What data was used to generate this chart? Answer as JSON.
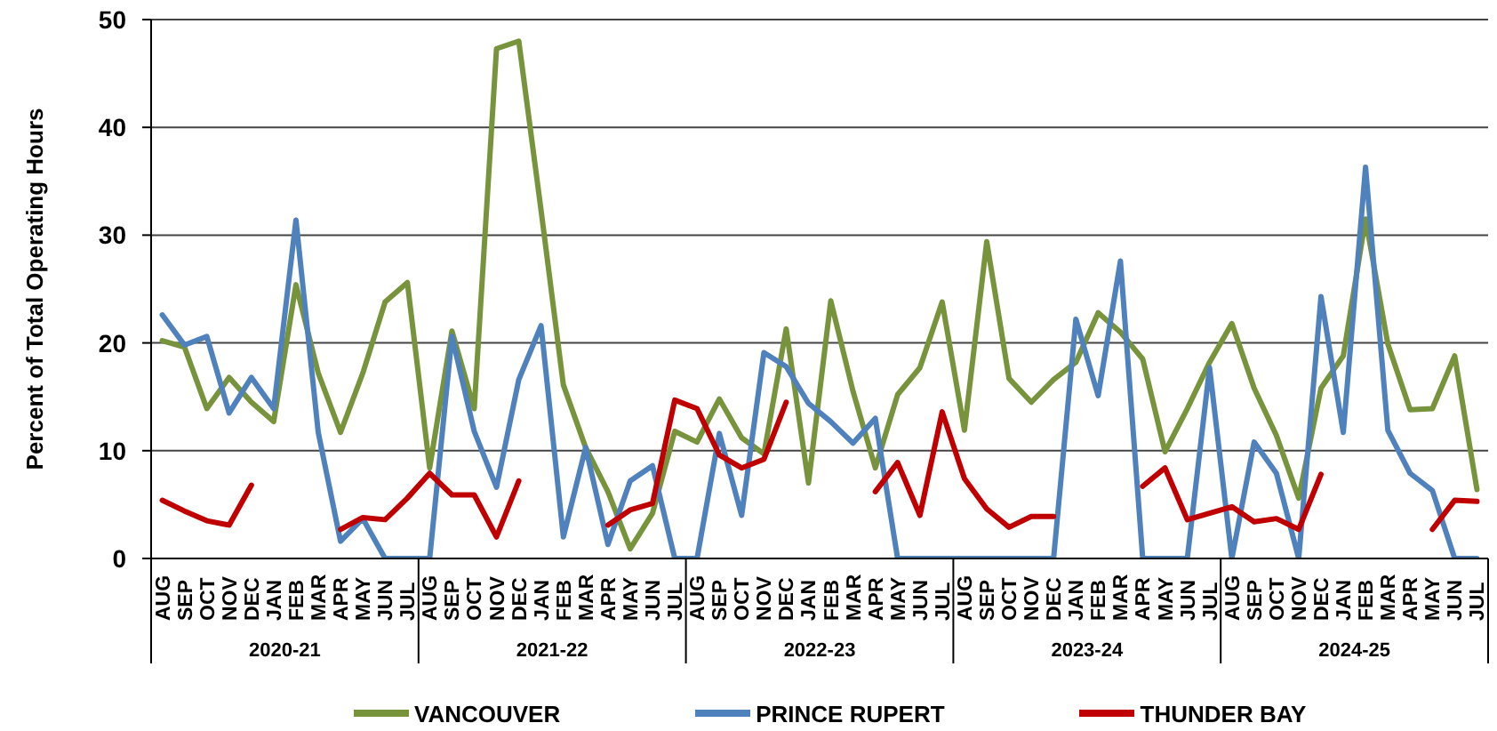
{
  "chart_data": {
    "type": "line",
    "ylabel": "Percent of Total Operating Hours",
    "categories": [
      "AUG",
      "SEP",
      "OCT",
      "NOV",
      "DEC",
      "JAN",
      "FEB",
      "MAR",
      "APR",
      "MAY",
      "JUN",
      "JUL",
      "AUG",
      "SEP",
      "OCT",
      "NOV",
      "DEC",
      "JAN",
      "FEB",
      "MAR",
      "APR",
      "MAY",
      "JUN",
      "JUL",
      "AUG",
      "SEP",
      "OCT",
      "NOV",
      "DEC",
      "JAN",
      "FEB",
      "MAR",
      "APR",
      "MAY",
      "JUN",
      "JUL",
      "AUG",
      "SEP",
      "OCT",
      "NOV",
      "DEC",
      "JAN",
      "FEB",
      "MAR",
      "APR",
      "MAY",
      "JUN",
      "JUL",
      "AUG",
      "SEP",
      "OCT",
      "NOV",
      "DEC",
      "JAN",
      "FEB",
      "MAR",
      "APR",
      "MAY",
      "JUN",
      "JUL"
    ],
    "annotations": [
      "2020-21",
      "2021-22",
      "2022-23",
      "2023-24",
      "2024-25"
    ],
    "series": [
      {
        "name": "VANCOUVER",
        "color": "#77933c",
        "values": [
          20.2,
          19.6,
          13.9,
          16.8,
          14.5,
          12.7,
          25.4,
          17.2,
          11.7,
          17.2,
          23.8,
          25.6,
          8.4,
          21.1,
          13.9,
          47.3,
          48.0,
          32.3,
          16.1,
          10.3,
          6.2,
          0.9,
          4.2,
          11.8,
          10.8,
          14.8,
          11.2,
          9.7,
          21.3,
          7.0,
          23.9,
          15.5,
          8.4,
          15.2,
          17.7,
          23.8,
          11.9,
          29.4,
          16.7,
          14.5,
          16.6,
          18.2,
          22.8,
          21.0,
          18.5,
          9.9,
          13.9,
          18.2,
          21.8,
          15.8,
          11.4,
          5.6,
          15.8,
          18.8,
          31.5,
          19.9,
          13.8,
          13.9,
          18.8,
          6.4
        ]
      },
      {
        "name": "PRINCE RUPERT",
        "color": "#4f81bd",
        "values": [
          22.6,
          19.8,
          20.6,
          13.5,
          16.8,
          13.9,
          31.4,
          11.7,
          1.6,
          3.7,
          0,
          0,
          0,
          20.6,
          11.8,
          6.6,
          16.6,
          21.6,
          2.0,
          10.3,
          1.3,
          7.2,
          8.6,
          0,
          0,
          11.6,
          4.0,
          19.1,
          17.8,
          14.4,
          12.7,
          10.7,
          13.0,
          0,
          0,
          0,
          0,
          0,
          0,
          0,
          0,
          22.2,
          15.1,
          27.6,
          0,
          0,
          0,
          17.7,
          0,
          10.8,
          7.9,
          0,
          24.3,
          11.7,
          36.3,
          11.9,
          7.9,
          6.3,
          0,
          0
        ]
      },
      {
        "name": "THUNDER BAY",
        "color": "#c00000",
        "values": [
          5.4,
          4.4,
          3.5,
          3.1,
          6.8,
          null,
          null,
          null,
          2.7,
          3.8,
          3.6,
          5.6,
          7.9,
          5.9,
          5.9,
          2.0,
          7.2,
          null,
          null,
          null,
          3.1,
          4.5,
          5.1,
          14.7,
          13.9,
          9.6,
          8.4,
          9.2,
          14.5,
          null,
          null,
          null,
          6.2,
          8.9,
          4.0,
          13.6,
          7.4,
          4.6,
          2.9,
          3.9,
          3.9,
          null,
          null,
          null,
          6.7,
          8.4,
          3.6,
          4.2,
          4.8,
          3.4,
          3.7,
          2.7,
          7.8,
          null,
          null,
          null,
          null,
          2.7,
          5.4,
          5.3
        ]
      }
    ],
    "ylim": [
      0,
      50
    ],
    "yticks": [
      0,
      10,
      20,
      30,
      40,
      50
    ],
    "grid": "y",
    "legend": "bottom",
    "marker": "none",
    "line_style": "solid"
  }
}
